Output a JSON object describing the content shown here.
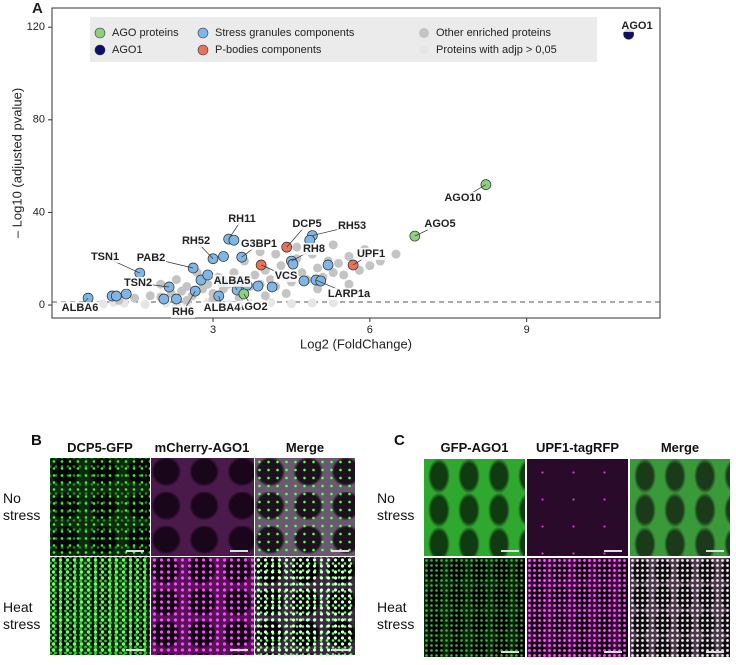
{
  "chart_data": {
    "type": "scatter",
    "panel_label": "A",
    "xlabel": "Log2 (FoldChange)",
    "ylabel": "– Log10 (adjusted pvalue)",
    "xlim": [
      -0.08,
      11.55
    ],
    "ylim": [
      -5.6,
      128.3
    ],
    "xticks": [
      3,
      6,
      9
    ],
    "yticks": [
      0,
      40,
      80,
      120
    ],
    "hline": 1.3,
    "series": [
      {
        "name": "AGO proteins",
        "color": "#8fd07f",
        "x": [
          8.22,
          6.86,
          3.59
        ],
        "values": [
          52,
          29.8,
          4.8
        ],
        "labels": [
          "AGO10",
          "AGO5",
          "AGO2"
        ]
      },
      {
        "name": "AGO1",
        "color": "#0d0d6b",
        "x": [
          10.95
        ],
        "values": [
          117
        ],
        "labels": [
          "AGO1"
        ]
      },
      {
        "name": "Stress granules components",
        "color": "#7fb6e6",
        "x": [
          3.3,
          3.4,
          4.9,
          3.0,
          3.55,
          4.5,
          1.6,
          2.62,
          2.16,
          2.66,
          3.46,
          3.11,
          0.61,
          4.97,
          1.07,
          1.15,
          1.34,
          2.06,
          2.3,
          2.77,
          2.9,
          3.17,
          3.48,
          3.65,
          3.86,
          4.13,
          4.74,
          5.06,
          5.2,
          4.85,
          4.53,
          3.2
        ],
        "values": [
          28.5,
          28,
          30,
          20,
          20.7,
          19,
          13.8,
          16,
          7.8,
          6,
          6.5,
          3.9,
          3,
          10.8,
          3.9,
          3.9,
          4.8,
          2.6,
          2.6,
          10.8,
          13,
          10.4,
          10,
          8.6,
          8.2,
          7.8,
          10.4,
          10.4,
          17.3,
          28,
          17.7,
          21
        ],
        "labels": [
          "RH11",
          null,
          "RH53",
          "RH52",
          "G3BP1",
          "RH8",
          "TSN1",
          "PAB2",
          "TSN2",
          "RH6",
          "ALBA5",
          "ALBA4",
          "ALBA6",
          "LARP1a",
          null,
          null,
          null,
          null,
          null,
          null,
          null,
          null,
          null,
          null,
          null,
          null,
          null,
          null,
          null,
          null,
          null,
          null
        ]
      },
      {
        "name": "P-bodies components",
        "color": "#e8735a",
        "x": [
          4.41,
          3.92,
          5.68
        ],
        "values": [
          25,
          17.3,
          17.3
        ],
        "labels": [
          "DCP5",
          "VCS",
          "UPF1"
        ]
      },
      {
        "name": "Other enriched proteins",
        "color": "#c4c4c4",
        "x": [
          1.2,
          1.5,
          1.8,
          2,
          2.2,
          2.4,
          2.5,
          2.6,
          2.8,
          2.9,
          3,
          3.1,
          3.2,
          3.3,
          3.4,
          3.5,
          3.6,
          3.7,
          3.8,
          3.9,
          4,
          4.1,
          4.2,
          4.3,
          4.4,
          4.5,
          4.6,
          4.7,
          4.8,
          4.9,
          5,
          5.1,
          5.2,
          5.3,
          5.4,
          5.5,
          5.6,
          5.8,
          6,
          6.2,
          3.6,
          4.2,
          5,
          5.3,
          4.6,
          3.9,
          2.7,
          2.3,
          2,
          4.4,
          5,
          5.6,
          4,
          3.5,
          3,
          2.5,
          6.5,
          5.9
        ],
        "values": [
          2,
          3,
          4,
          3.5,
          5,
          6,
          8,
          4,
          7,
          9,
          5,
          12,
          7,
          9,
          14,
          6,
          11,
          8,
          13,
          9,
          15,
          11,
          8,
          17,
          12,
          10,
          20,
          14,
          11,
          22,
          16,
          12,
          19,
          14,
          18,
          13,
          21,
          15,
          17,
          19,
          19,
          22,
          24,
          26,
          25,
          23,
          14,
          11,
          9,
          5,
          7,
          9,
          4,
          3,
          2.5,
          2,
          22,
          24
        ]
      },
      {
        "name": "Proteins with adjp > 0,05",
        "color": "#e6e6e6",
        "x": [
          0.9,
          1.3,
          1.7,
          2.1,
          2.5,
          2.9,
          3.3,
          3.7,
          4.1,
          4.5,
          4.9,
          5.3,
          1.1,
          2.3,
          3.1
        ],
        "values": [
          0.5,
          0.8,
          0.3,
          0.9,
          0.6,
          1,
          0.4,
          0.8,
          1.1,
          0.6,
          0.9,
          1,
          1.1,
          0.2,
          0.7
        ]
      }
    ]
  },
  "panel_b": {
    "label": "B",
    "columns": [
      "DCP5-GFP",
      "mCherry-AGO1",
      "Merge"
    ],
    "rows": [
      "No stress",
      "Heat stress"
    ]
  },
  "panel_c": {
    "label": "C",
    "columns": [
      "GFP-AGO1",
      "UPF1-tagRFP",
      "Merge"
    ],
    "rows": [
      "No stress",
      "Heat stress"
    ]
  }
}
